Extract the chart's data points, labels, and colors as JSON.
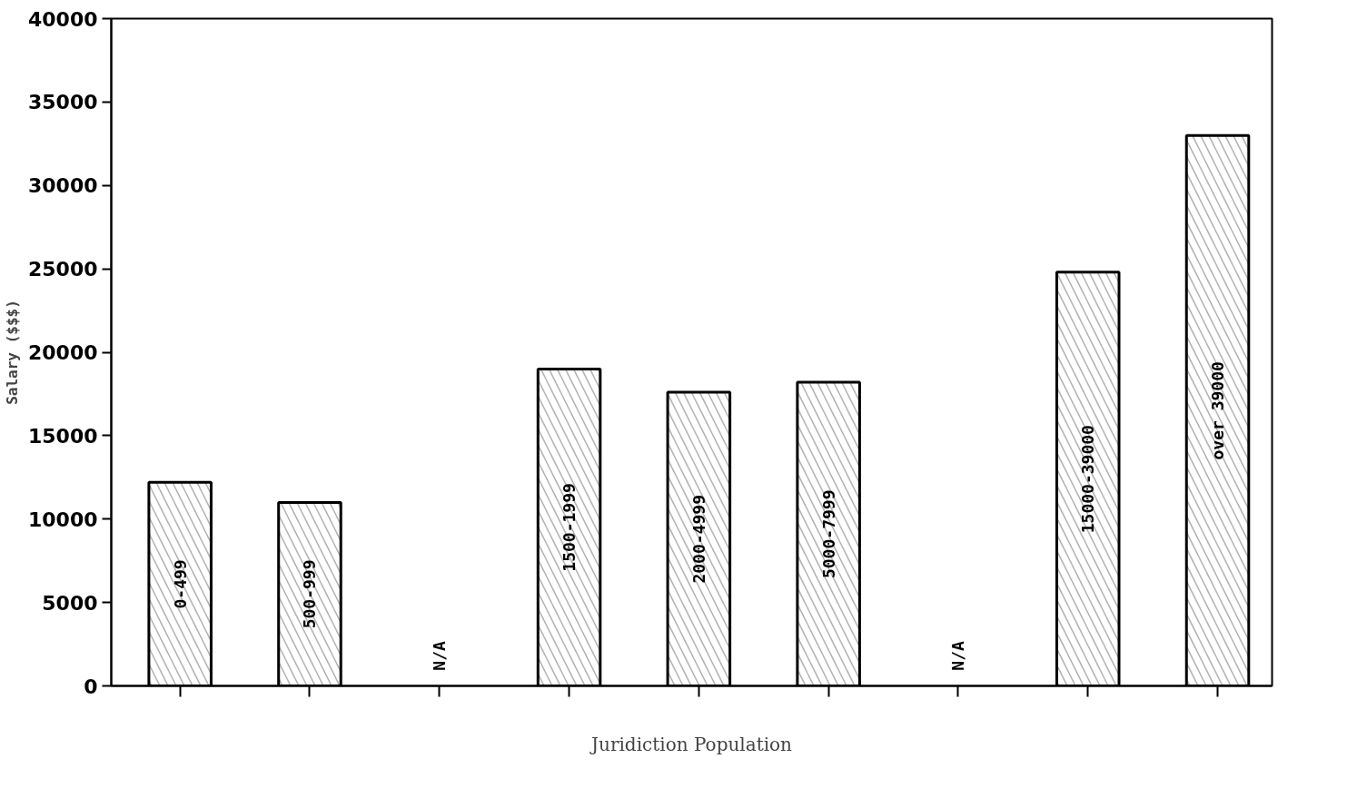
{
  "chart_data": {
    "type": "bar",
    "xlabel": "Juridiction Population",
    "ylabel": "Salary ($$$)",
    "categories": [
      "0-499",
      "500-999",
      "N/A",
      "1500-1999",
      "2000-4999",
      "5000-7999",
      "N/A",
      "15000-39000",
      "over 39000"
    ],
    "values": [
      12200,
      11000,
      null,
      19000,
      17600,
      18200,
      null,
      24800,
      33000
    ],
    "color": "#ffffff",
    "ylim": [
      0,
      40000
    ],
    "yticks": [
      0,
      5000,
      10000,
      15000,
      20000,
      25000,
      30000,
      35000,
      40000
    ],
    "grid": false
  }
}
